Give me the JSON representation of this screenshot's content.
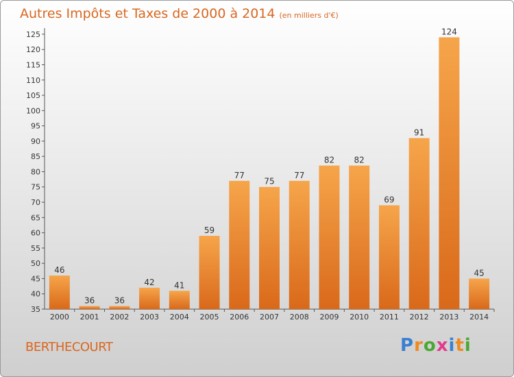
{
  "title": "Autres Impôts et Taxes de 2000 à 2014",
  "subtitle": "(en milliers d'€)",
  "place": "BERTHECOURT",
  "logo": {
    "text": "Proxiti",
    "letters": [
      "P",
      "r",
      "o",
      "x",
      "i",
      "t",
      "i"
    ],
    "colors": [
      "#3a7fd0",
      "#ef8a1f",
      "#4aa832",
      "#e23a8c",
      "#3a7fd0",
      "#ef8a1f",
      "#4aa832"
    ]
  },
  "colors": {
    "accent": "#d9661f",
    "bar_top": "#f6a54b",
    "bar_bottom": "#d9691a"
  },
  "chart_data": {
    "type": "bar",
    "categories": [
      "2000",
      "2001",
      "2002",
      "2003",
      "2004",
      "2005",
      "2006",
      "2007",
      "2008",
      "2009",
      "2010",
      "2011",
      "2012",
      "2013",
      "2014"
    ],
    "values": [
      46,
      36,
      36,
      42,
      41,
      59,
      77,
      75,
      77,
      82,
      82,
      69,
      91,
      124,
      45
    ],
    "ylim": [
      35,
      127
    ],
    "yticks": [
      35,
      40,
      45,
      50,
      55,
      60,
      65,
      70,
      75,
      80,
      85,
      90,
      95,
      100,
      105,
      110,
      115,
      120,
      125
    ],
    "grid": false,
    "xlabel": "",
    "ylabel": ""
  }
}
